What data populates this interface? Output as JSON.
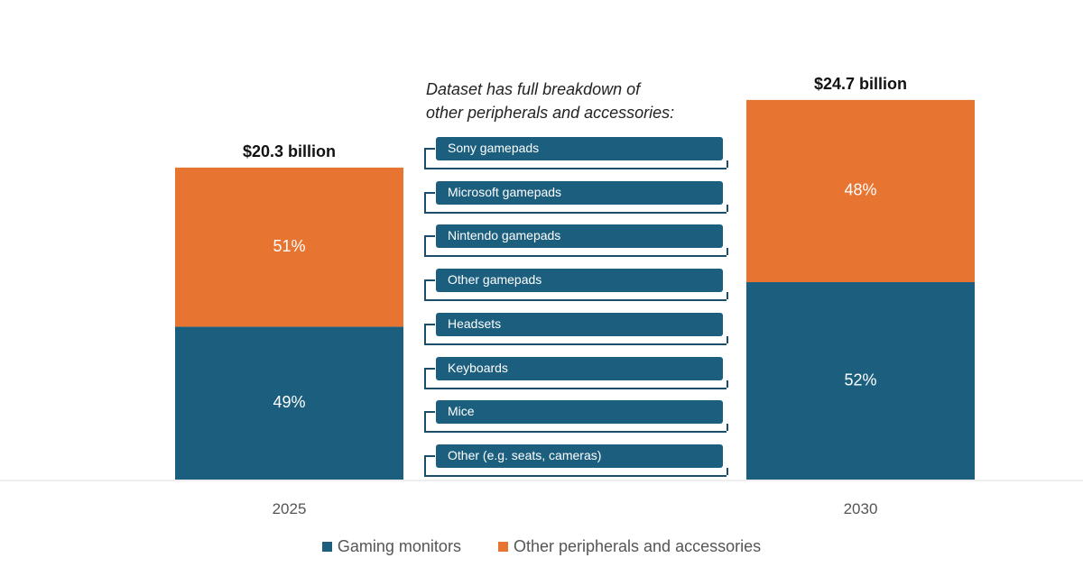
{
  "chart_data": {
    "type": "bar",
    "stacked": true,
    "categories": [
      "2025",
      "2030"
    ],
    "totals": [
      20.3,
      24.7
    ],
    "total_labels": [
      "$20.3 billion",
      "$24.7 billion"
    ],
    "series": [
      {
        "name": "Gaming monitors",
        "color": "#1b5e7e",
        "percent": [
          49,
          52
        ],
        "labels": [
          "49%",
          "52%"
        ]
      },
      {
        "name": "Other peripherals and accessories",
        "color": "#e87431",
        "percent": [
          51,
          48
        ],
        "labels": [
          "51%",
          "48%"
        ]
      }
    ],
    "legend": "bottom",
    "grid": false
  },
  "annotation": {
    "title_line1": "Dataset has full breakdown of",
    "title_line2": "other peripherals and accessories:",
    "items": [
      "Sony gamepads",
      "Microsoft gamepads",
      "Nintendo  gamepads",
      "Other gamepads",
      "Headsets",
      "Keyboards",
      "Mice",
      "Other (e.g. seats, cameras)"
    ]
  }
}
